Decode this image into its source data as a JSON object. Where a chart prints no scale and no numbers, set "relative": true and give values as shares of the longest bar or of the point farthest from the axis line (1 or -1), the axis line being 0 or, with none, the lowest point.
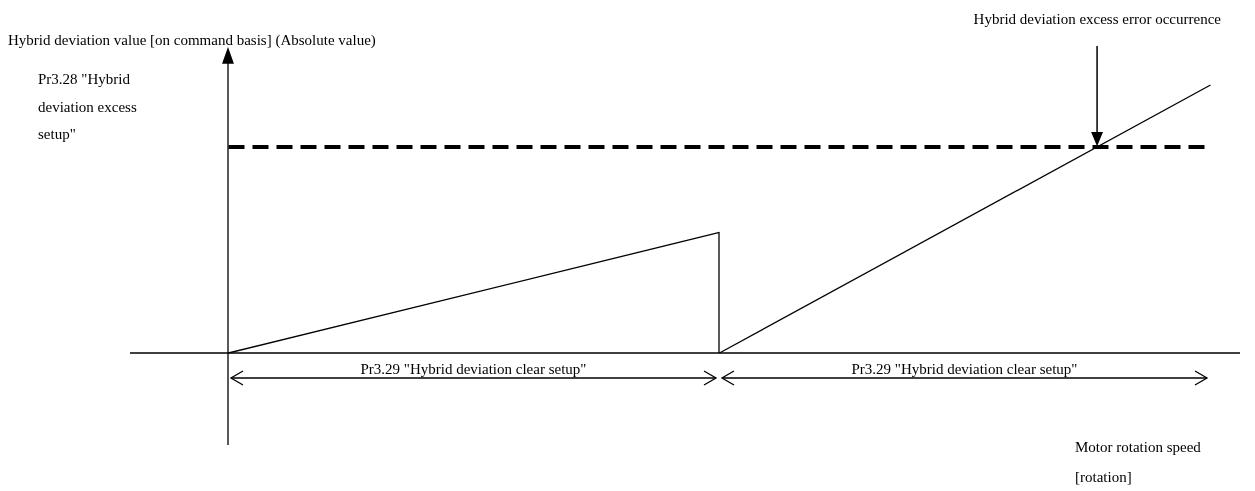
{
  "chart_data": {
    "type": "line",
    "relative": true,
    "categories": [
      null,
      null,
      null
    ],
    "grid": false,
    "marker": "none",
    "line_style": "solid",
    "series": [
      {
        "color": "#000000",
        "values": [
          0,
          0.45,
          null
        ]
      },
      {
        "color": "#000000",
        "values": [
          null,
          0,
          1
        ]
      }
    ],
    "ref_lines": [
      {
        "axis": "y",
        "value": 0.77,
        "label": "Pr3.28 \"Hybrid deviation excess setup\"",
        "color": "#000000",
        "line_style": "dashed"
      }
    ],
    "annotations": [
      "Hybrid deviation value [on command basis] (Absolute value)",
      "Hybrid deviation excess error occurrence",
      "Pr3.29 \"Hybrid deviation clear setup\"",
      "Pr3.29 \"Hybrid deviation clear setup\"",
      "Motor rotation speed [rotation]"
    ]
  }
}
